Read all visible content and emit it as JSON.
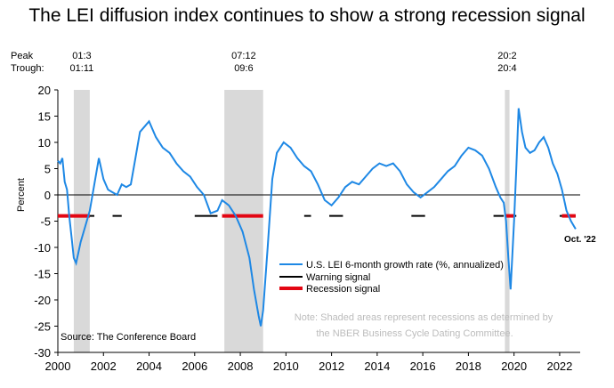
{
  "title": "The LEI diffusion index continues to show a strong recession signal",
  "chart_data": {
    "type": "line",
    "title": "The LEI diffusion index continues to show a strong recession signal",
    "ylabel": "Percent",
    "xlabel": "",
    "xlim": [
      2000.0,
      2022.9
    ],
    "ylim": [
      -30,
      20
    ],
    "yticks": [
      20,
      15,
      10,
      5,
      0,
      -5,
      -10,
      -15,
      -20,
      -25,
      -30
    ],
    "xticks": [
      2000,
      2002,
      2004,
      2006,
      2008,
      2010,
      2012,
      2014,
      2016,
      2018,
      2020,
      2022
    ],
    "peak_label": "Peak",
    "trough_label": "Trough:",
    "recessions": [
      {
        "start": 2000.7,
        "end": 2001.4,
        "peak": "01:3",
        "trough": "01:11"
      },
      {
        "start": 2007.3,
        "end": 2009.0,
        "peak": "07:12",
        "trough": "09:6"
      },
      {
        "start": 2019.6,
        "end": 2019.8,
        "peak": "20:2",
        "trough": "20:4"
      }
    ],
    "series": [
      {
        "name": "U.S. LEI 6-month growth rate (%, annualized)",
        "color": "#1e88e5",
        "x": [
          2000.0,
          2000.1,
          2000.2,
          2000.3,
          2000.4,
          2000.5,
          2000.6,
          2000.7,
          2000.8,
          2000.9,
          2001.0,
          2001.2,
          2001.4,
          2001.6,
          2001.8,
          2001.9,
          2002.0,
          2002.2,
          2002.4,
          2002.6,
          2002.8,
          2003.0,
          2003.2,
          2003.4,
          2003.6,
          2003.8,
          2004.0,
          2004.3,
          2004.6,
          2004.9,
          2005.2,
          2005.5,
          2005.8,
          2006.1,
          2006.4,
          2006.7,
          2007.0,
          2007.2,
          2007.5,
          2007.8,
          2008.1,
          2008.4,
          2008.6,
          2008.8,
          2008.9,
          2009.0,
          2009.2,
          2009.4,
          2009.6,
          2009.9,
          2010.2,
          2010.5,
          2010.8,
          2011.1,
          2011.4,
          2011.7,
          2012.0,
          2012.3,
          2012.6,
          2012.9,
          2013.2,
          2013.5,
          2013.8,
          2014.1,
          2014.4,
          2014.7,
          2015.0,
          2015.3,
          2015.6,
          2015.9,
          2016.2,
          2016.5,
          2016.8,
          2017.1,
          2017.4,
          2017.7,
          2018.0,
          2018.3,
          2018.6,
          2018.9,
          2019.2,
          2019.4,
          2019.55,
          2019.65,
          2019.75,
          2019.85,
          2020.0,
          2020.1,
          2020.2,
          2020.35,
          2020.5,
          2020.7,
          2020.9,
          2021.1,
          2021.3,
          2021.5,
          2021.7,
          2021.9,
          2022.1,
          2022.3,
          2022.5,
          2022.7
        ],
        "values": [
          6.5,
          6.0,
          7.0,
          2.5,
          1.0,
          -4.0,
          -8.0,
          -12.0,
          -13.0,
          -11.0,
          -9.0,
          -6.0,
          -3.0,
          2.0,
          7.0,
          5.0,
          3.0,
          1.0,
          0.5,
          0.0,
          2.0,
          1.5,
          2.0,
          7.0,
          12.0,
          13.0,
          14.0,
          11.0,
          9.0,
          8.0,
          6.0,
          4.5,
          3.5,
          1.5,
          0.0,
          -3.5,
          -3.0,
          -1.0,
          -2.0,
          -4.0,
          -7.0,
          -12.0,
          -18.0,
          -23.0,
          -25.0,
          -22.0,
          -10.0,
          3.0,
          8.0,
          10.0,
          9.0,
          7.0,
          5.5,
          4.5,
          2.0,
          -1.0,
          -2.0,
          -0.5,
          1.5,
          2.5,
          2.0,
          3.5,
          5.0,
          6.0,
          5.5,
          6.0,
          4.5,
          2.0,
          0.5,
          -0.5,
          0.5,
          1.5,
          3.0,
          4.5,
          5.5,
          7.5,
          9.0,
          8.5,
          7.5,
          5.0,
          1.5,
          -0.5,
          -1.5,
          -5.0,
          -12.0,
          -18.0,
          -5.0,
          5.0,
          16.5,
          12.0,
          9.0,
          8.0,
          8.5,
          10.0,
          11.0,
          9.0,
          6.0,
          4.0,
          1.0,
          -3.0,
          -5.0,
          -6.5
        ]
      },
      {
        "name": "Warning signal",
        "color": "#000000",
        "x": [
          [
            2000.0,
            2000.7
          ],
          [
            2001.4,
            2001.6
          ],
          [
            2002.4,
            2002.8
          ],
          [
            2006.0,
            2007.0
          ],
          [
            2010.8,
            2011.1
          ],
          [
            2011.9,
            2012.5
          ],
          [
            2015.5,
            2016.1
          ],
          [
            2019.1,
            2019.55
          ],
          [
            2020.0,
            2020.1
          ],
          [
            2022.0,
            2022.7
          ]
        ],
        "values": -4
      },
      {
        "name": "Recession signal",
        "color": "#e30613",
        "x": [
          [
            2000.0,
            2001.4
          ],
          [
            2007.2,
            2009.0
          ],
          [
            2019.6,
            2020.0
          ],
          [
            2022.1,
            2022.7
          ]
        ],
        "values": -4
      }
    ],
    "annotation": "Oct. '22",
    "note_line1": "Note: Shaded areas represent recessions as determined by",
    "note_line2": "the NBER Business Cycle Dating Committee.",
    "source": "Source: The Conference Board",
    "legend_position": "bottom-right",
    "grid": false
  }
}
